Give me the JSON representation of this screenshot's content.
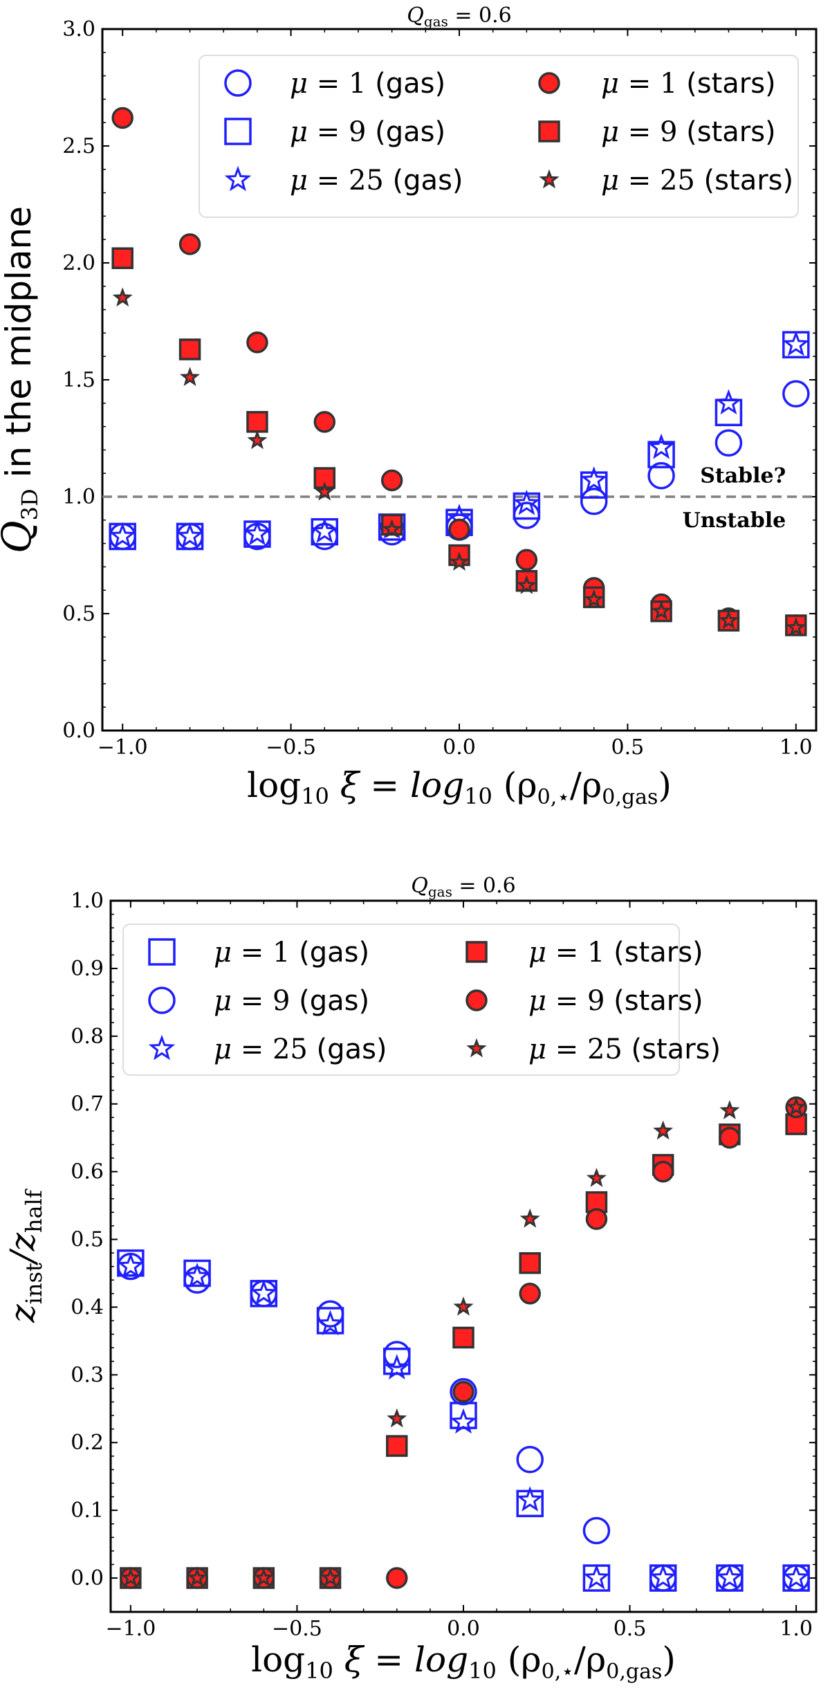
{
  "chart_data": [
    {
      "type": "scatter",
      "title": {
        "main": "Q",
        "sub": "gas",
        "rest": " = 0.6"
      },
      "xlabel": {
        "a": "log",
        "a_sub": "10",
        "b": " ξ = log",
        "b_sub": "10",
        "c": " (ρ",
        "c_sub": "0,⋆",
        "d": "/ρ",
        "d_sub": "0,gas",
        "e": ")"
      },
      "ylabel": {
        "main": "Q",
        "sub": "3D",
        "rest": " in the midplane"
      },
      "xlim": [
        -1.06,
        1.06
      ],
      "ylim": [
        0.0,
        3.0
      ],
      "xticks": [
        -1.0,
        -0.5,
        0.0,
        0.5,
        1.0
      ],
      "xtick_labels": [
        "−1.0",
        "−0.5",
        "0.0",
        "0.5",
        "1.0"
      ],
      "yticks": [
        0.0,
        0.5,
        1.0,
        1.5,
        2.0,
        2.5,
        3.0
      ],
      "ytick_labels": [
        "0.0",
        "0.5",
        "1.0",
        "1.5",
        "2.0",
        "2.5",
        "3.0"
      ],
      "hline": {
        "y": 1.0,
        "color": "#808080",
        "style": "dashed"
      },
      "annotations": [
        {
          "text": "Stable?",
          "x": 0.97,
          "y": 1.06
        },
        {
          "text": "Unstable",
          "x": 0.97,
          "y": 0.87
        }
      ],
      "legend": {
        "placement": "top-right",
        "columns": 2
      },
      "x": [
        -1.0,
        -0.8,
        -0.6,
        -0.4,
        -0.2,
        0.0,
        0.2,
        0.4,
        0.6,
        0.8,
        1.0
      ],
      "series": [
        {
          "name": "μ = 1 (gas)",
          "marker": "circle",
          "filled": false,
          "color": "#1f1fff",
          "values": [
            0.83,
            0.83,
            0.83,
            0.83,
            0.85,
            0.87,
            0.92,
            0.98,
            1.09,
            1.23,
            1.44
          ]
        },
        {
          "name": "μ = 9 (gas)",
          "marker": "square",
          "filled": false,
          "color": "#1f1fff",
          "values": [
            0.83,
            0.83,
            0.84,
            0.85,
            0.87,
            0.89,
            0.96,
            1.05,
            1.18,
            1.36,
            1.65
          ]
        },
        {
          "name": "μ = 25 (gas)",
          "marker": "star",
          "filled": false,
          "color": "#1f1fff",
          "values": [
            0.83,
            0.83,
            0.84,
            0.85,
            0.87,
            0.91,
            0.97,
            1.07,
            1.21,
            1.4,
            1.65
          ]
        },
        {
          "name": "μ = 1 (stars)",
          "marker": "circle",
          "filled": true,
          "color": "#ff2020",
          "values": [
            2.62,
            2.08,
            1.66,
            1.32,
            1.07,
            0.86,
            0.73,
            0.61,
            0.54,
            0.48,
            0.45
          ]
        },
        {
          "name": "μ = 9 (stars)",
          "marker": "square",
          "filled": true,
          "color": "#ff2020",
          "values": [
            2.02,
            1.63,
            1.32,
            1.08,
            0.88,
            0.75,
            0.64,
            0.57,
            0.51,
            0.47,
            0.45
          ]
        },
        {
          "name": "μ = 25 (stars)",
          "marker": "star",
          "filled": true,
          "color": "#ff2020",
          "values": [
            1.85,
            1.51,
            1.24,
            1.02,
            0.86,
            0.72,
            0.62,
            0.56,
            0.51,
            0.47,
            0.44
          ]
        }
      ]
    },
    {
      "type": "scatter",
      "title": {
        "main": "Q",
        "sub": "gas",
        "rest": " = 0.6"
      },
      "xlabel": {
        "a": "log",
        "a_sub": "10",
        "b": " ξ = log",
        "b_sub": "10",
        "c": " (ρ",
        "c_sub": "0,⋆",
        "d": "/ρ",
        "d_sub": "0,gas",
        "e": ")"
      },
      "ylabel": {
        "main": "z",
        "sub": "inst",
        "rest": "/z",
        "sub2": "half"
      },
      "xlim": [
        -1.06,
        1.06
      ],
      "ylim": [
        -0.05,
        1.0
      ],
      "xticks": [
        -1.0,
        -0.5,
        0.0,
        0.5,
        1.0
      ],
      "xtick_labels": [
        "−1.0",
        "−0.5",
        "0.0",
        "0.5",
        "1.0"
      ],
      "yticks": [
        0.0,
        0.1,
        0.2,
        0.3,
        0.4,
        0.5,
        0.6,
        0.7,
        0.8,
        0.9,
        1.0
      ],
      "ytick_labels": [
        "0.0",
        "0.1",
        "0.2",
        "0.3",
        "0.4",
        "0.5",
        "0.6",
        "0.7",
        "0.8",
        "0.9",
        "1.0"
      ],
      "legend": {
        "placement": "top-left",
        "columns": 2
      },
      "x": [
        -1.0,
        -0.8,
        -0.6,
        -0.4,
        -0.2,
        0.0,
        0.2,
        0.4,
        0.6,
        0.8,
        1.0
      ],
      "series": [
        {
          "name": "μ = 1 (gas)",
          "marker": "square",
          "filled": false,
          "color": "#1f1fff",
          "values": [
            0.465,
            0.45,
            0.42,
            0.38,
            0.32,
            0.24,
            0.11,
            0.0,
            0.0,
            0.0,
            0.0
          ]
        },
        {
          "name": "μ = 9 (gas)",
          "marker": "circle",
          "filled": false,
          "color": "#1f1fff",
          "values": [
            0.46,
            0.44,
            0.42,
            0.39,
            0.33,
            0.275,
            0.175,
            0.07,
            0.0,
            0.0,
            0.0
          ]
        },
        {
          "name": "μ = 25 (gas)",
          "marker": "star",
          "filled": false,
          "color": "#1f1fff",
          "values": [
            0.46,
            0.445,
            0.42,
            0.375,
            0.31,
            0.23,
            0.115,
            0.0,
            0.0,
            0.0,
            0.0
          ]
        },
        {
          "name": "μ = 1 (stars)",
          "marker": "square",
          "filled": true,
          "color": "#ff2020",
          "values": [
            0.0,
            0.0,
            0.0,
            0.0,
            0.195,
            0.355,
            0.465,
            0.555,
            0.61,
            0.655,
            0.67
          ]
        },
        {
          "name": "μ = 9 (stars)",
          "marker": "circle",
          "filled": true,
          "color": "#ff2020",
          "values": [
            0.0,
            0.0,
            0.0,
            0.0,
            0.0,
            0.275,
            0.42,
            0.53,
            0.6,
            0.65,
            0.695
          ]
        },
        {
          "name": "μ = 25 (stars)",
          "marker": "star",
          "filled": true,
          "color": "#ff2020",
          "values": [
            0.0,
            0.0,
            0.0,
            0.0,
            0.235,
            0.4,
            0.53,
            0.59,
            0.66,
            0.69,
            0.695
          ]
        }
      ]
    }
  ]
}
